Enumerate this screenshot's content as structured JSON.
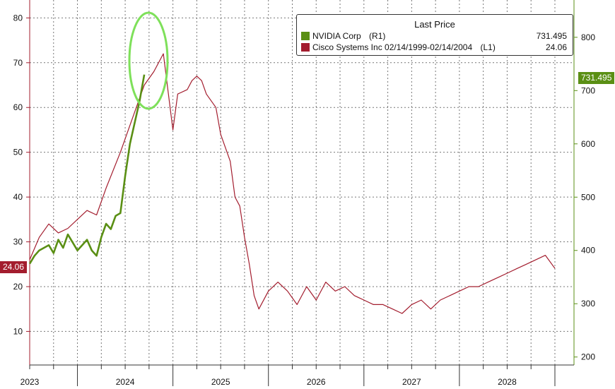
{
  "chart_data": {
    "type": "line",
    "title": "",
    "legend": {
      "title": "Last Price",
      "placement": "top-right",
      "entries": [
        {
          "name": "NVIDIA Corp",
          "axis": "(R1)",
          "value": "731.495",
          "color": "#5a8f14"
        },
        {
          "name": "Cisco Systems Inc 02/14/1999-02/14/2004",
          "axis": "(L1)",
          "value": "24.06",
          "color": "#a31d2e"
        }
      ]
    },
    "x_axis": {
      "ticks": [
        "2023",
        "2024",
        "2025",
        "2026",
        "2027",
        "2028"
      ],
      "range": [
        2022.5,
        2028.2
      ]
    },
    "left_axis": {
      "ticks": [
        10,
        20,
        30,
        40,
        50,
        60,
        70,
        80
      ],
      "range": [
        2.5,
        84
      ]
    },
    "right_axis": {
      "ticks": [
        200,
        300,
        400,
        500,
        600,
        700,
        800
      ],
      "range": [
        185,
        870
      ]
    },
    "grid": true,
    "last_value_labels": {
      "left": "24.06",
      "right": "731.495"
    },
    "series": [
      {
        "name": "Cisco Systems Inc 02/14/1999-02/14/2004",
        "axis": "left",
        "color": "#a31d2e",
        "x": [
          2022.5,
          2022.6,
          2022.7,
          2022.8,
          2022.9,
          2023.0,
          2023.1,
          2023.2,
          2023.3,
          2023.45,
          2023.55,
          2023.7,
          2023.8,
          2023.9,
          2024.0,
          2024.05,
          2024.15,
          2024.2,
          2024.25,
          2024.3,
          2024.35,
          2024.45,
          2024.5,
          2024.6,
          2024.65,
          2024.7,
          2024.75,
          2024.8,
          2024.85,
          2024.9,
          2025.0,
          2025.1,
          2025.2,
          2025.3,
          2025.4,
          2025.5,
          2025.6,
          2025.7,
          2025.8,
          2025.9,
          2026.0,
          2026.1,
          2026.2,
          2026.3,
          2026.4,
          2026.5,
          2026.6,
          2026.7,
          2026.8,
          2026.9,
          2027.0,
          2027.1,
          2027.2,
          2027.3,
          2027.4,
          2027.5,
          2027.6,
          2027.7,
          2027.8,
          2027.9,
          2028.0
        ],
        "y": [
          26,
          31,
          34,
          32,
          33,
          35,
          37,
          36,
          42,
          50,
          56,
          65,
          68,
          72,
          55,
          63,
          64,
          66,
          67,
          66,
          63,
          60,
          54,
          48,
          40,
          38,
          31,
          25,
          18,
          15,
          19,
          21,
          19,
          16,
          20,
          17,
          21,
          19,
          20,
          18,
          17,
          16,
          16,
          15,
          14,
          16,
          17,
          15,
          17,
          18,
          19,
          20,
          20,
          21,
          22,
          23,
          24,
          25,
          26,
          27,
          24.06
        ]
      },
      {
        "name": "NVIDIA Corp",
        "axis": "right",
        "color": "#5a8f14",
        "x": [
          2022.5,
          2022.55,
          2022.6,
          2022.7,
          2022.75,
          2022.8,
          2022.85,
          2022.9,
          2022.95,
          2023.0,
          2023.05,
          2023.1,
          2023.15,
          2023.2,
          2023.25,
          2023.3,
          2023.35,
          2023.4,
          2023.45,
          2023.5,
          2023.55,
          2023.6,
          2023.65,
          2023.7
        ],
        "y": [
          375,
          390,
          400,
          410,
          395,
          420,
          405,
          430,
          415,
          400,
          410,
          420,
          400,
          390,
          425,
          450,
          440,
          465,
          470,
          540,
          600,
          640,
          680,
          730
        ]
      }
    ]
  }
}
